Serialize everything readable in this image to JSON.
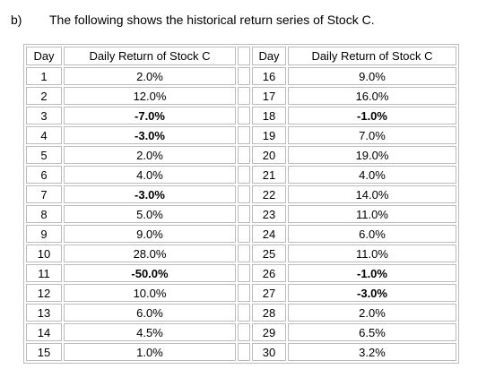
{
  "label": "b)",
  "intro": "The following shows the historical return series of Stock C.",
  "table": {
    "header": [
      "Day",
      "Daily Return of Stock C",
      "Day",
      "Daily Return of Stock C"
    ],
    "rows": [
      [
        "1",
        "2.0%",
        "16",
        "9.0%"
      ],
      [
        "2",
        "12.0%",
        "17",
        "16.0%"
      ],
      [
        "3",
        "-7.0%",
        "18",
        "-1.0%"
      ],
      [
        "4",
        "-3.0%",
        "19",
        "7.0%"
      ],
      [
        "5",
        "2.0%",
        "20",
        "19.0%"
      ],
      [
        "6",
        "4.0%",
        "21",
        "4.0%"
      ],
      [
        "7",
        "-3.0%",
        "22",
        "14.0%"
      ],
      [
        "8",
        "5.0%",
        "23",
        "11.0%"
      ],
      [
        "9",
        "9.0%",
        "24",
        "6.0%"
      ],
      [
        "10",
        "28.0%",
        "25",
        "11.0%"
      ],
      [
        "11",
        "-50.0%",
        "26",
        "-1.0%"
      ],
      [
        "12",
        "10.0%",
        "27",
        "-3.0%"
      ],
      [
        "13",
        "6.0%",
        "28",
        "2.0%"
      ],
      [
        "14",
        "4.5%",
        "29",
        "6.5%"
      ],
      [
        "15",
        "1.0%",
        "30",
        "3.2%"
      ]
    ]
  }
}
